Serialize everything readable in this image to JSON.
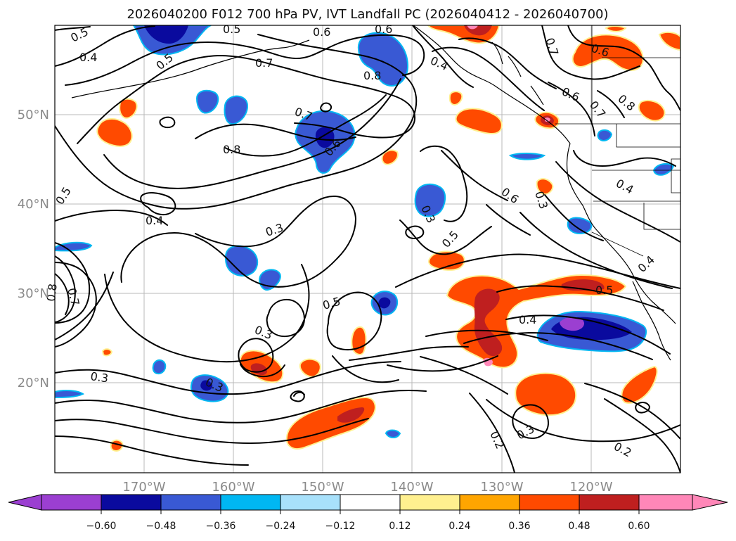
{
  "title": "2026040200 F012 700 hPa PV, IVT Landfall PC (2026040412 - 2026040700)",
  "axes": {
    "lon_ticks": [
      "170°W",
      "160°W",
      "150°W",
      "140°W",
      "130°W",
      "120°W"
    ],
    "lat_ticks": [
      "50°N",
      "40°N",
      "30°N",
      "20°N"
    ]
  },
  "colorbar": {
    "ticks": [
      "−0.60",
      "−0.48",
      "−0.36",
      "−0.24",
      "−0.12",
      "0.12",
      "0.24",
      "0.36",
      "0.48",
      "0.60"
    ],
    "colors": [
      "#9b3fd1",
      "#0a0a9e",
      "#3959d4",
      "#00b7f2",
      "#a8e1fb",
      "#ffffff",
      "#fff08f",
      "#ffa500",
      "#ff4a00",
      "#bf1f1f",
      "#ff87b8"
    ]
  },
  "contour_labels": [
    {
      "text": "0.5"
    },
    {
      "text": "0.4"
    },
    {
      "text": "0.5"
    },
    {
      "text": "0.5"
    },
    {
      "text": "0.6"
    },
    {
      "text": "0.6"
    },
    {
      "text": "0.7"
    },
    {
      "text": "0.8"
    },
    {
      "text": "0.4"
    },
    {
      "text": "0.7"
    },
    {
      "text": "0.6"
    },
    {
      "text": "0.8"
    },
    {
      "text": "0.7"
    },
    {
      "text": "0.6"
    },
    {
      "text": "0.8"
    },
    {
      "text": "0.7"
    },
    {
      "text": "0.6"
    },
    {
      "text": "0.4"
    },
    {
      "text": "0.5"
    },
    {
      "text": "0.4"
    },
    {
      "text": "0.3"
    },
    {
      "text": "0.3"
    },
    {
      "text": "0.6"
    },
    {
      "text": "0.5"
    },
    {
      "text": "0.4"
    },
    {
      "text": "0.5"
    },
    {
      "text": "0.3"
    },
    {
      "text": "0.5"
    },
    {
      "text": "0.4"
    },
    {
      "text": "0.3"
    },
    {
      "text": "0.3"
    },
    {
      "text": "0.3"
    },
    {
      "text": "0.2"
    },
    {
      "text": "0.3"
    },
    {
      "text": "0.2"
    },
    {
      "text": "0.7"
    },
    {
      "text": "0.8"
    }
  ],
  "map": {
    "projection": "cylindrical",
    "lon_range": [
      -180,
      -110
    ],
    "lat_range": [
      10,
      60
    ],
    "field": "700 hPa PV",
    "shading": "IVT Landfall PC"
  }
}
